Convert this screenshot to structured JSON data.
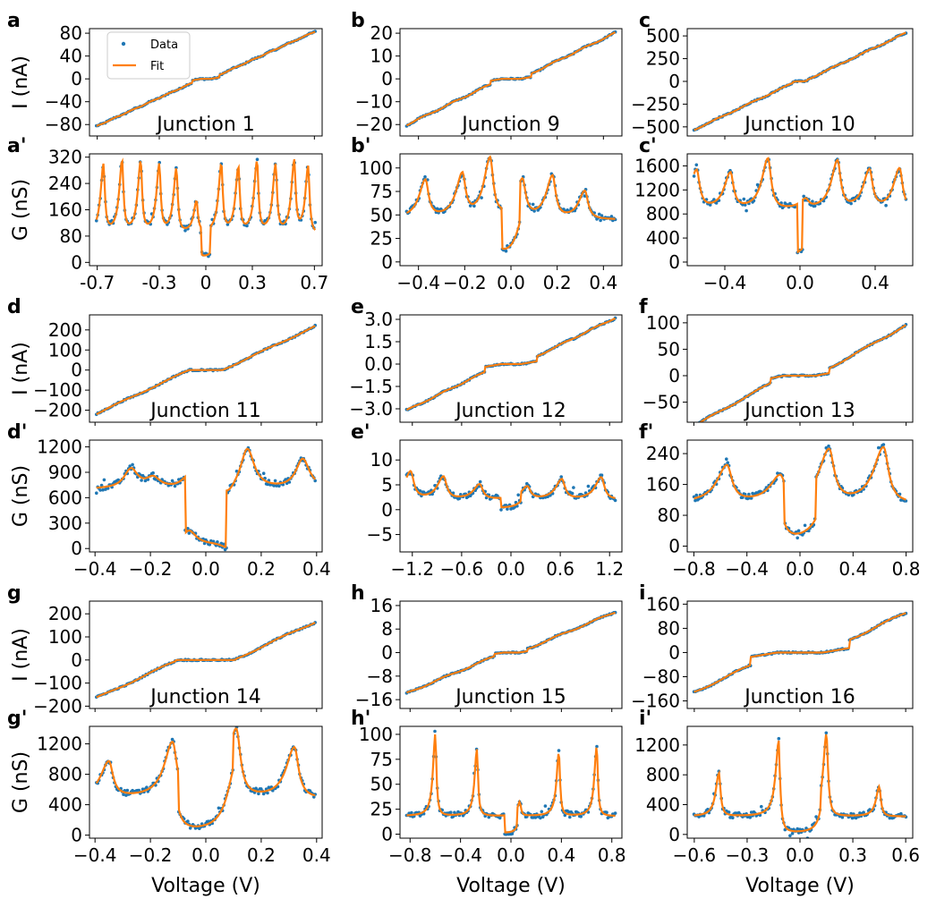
{
  "colors": {
    "data": "#1f77b4",
    "fit": "#ff7f0e",
    "frame": "#000000"
  },
  "legend": {
    "data_label": "Data",
    "fit_label": "Fit",
    "placement": "upper-left of panel a"
  },
  "common": {
    "xlabel": "Voltage (V)",
    "ylabel_current": "I (nA)",
    "ylabel_conductance": "G (nS)"
  },
  "chart_data": [
    {
      "id": "a",
      "type": "scatter",
      "quantity": "current",
      "title": "Junction 1",
      "xlim": [
        -0.75,
        0.75
      ],
      "ylim": [
        -100,
        88
      ],
      "yticks": [
        "80",
        "40",
        "0",
        "−40",
        "−80"
      ],
      "ytick_values": [
        80,
        40,
        0,
        -40,
        -80
      ],
      "xticks": [],
      "xtick_values": [],
      "model": {
        "kind": "iv",
        "slope": 123,
        "staircase": 0.26,
        "gap": 0.03,
        "period": 0.118,
        "phase": 0.059
      }
    },
    {
      "id": "a'",
      "type": "scatter",
      "quantity": "conductance",
      "title": "",
      "xlim": [
        -0.75,
        0.75
      ],
      "ylim": [
        -10,
        330
      ],
      "yticks": [
        "320",
        "240",
        "160",
        "80",
        "0"
      ],
      "ytick_values": [
        320,
        240,
        160,
        80,
        0
      ],
      "xticks": [
        "-0.7",
        "-0.3",
        "0",
        "0.3",
        "0.7"
      ],
      "xtick_values": [
        -0.7,
        -0.3,
        0,
        0.3,
        0.7
      ],
      "model": {
        "kind": "peaks",
        "peaks": [
          -0.66,
          -0.54,
          -0.42,
          -0.3,
          -0.19,
          -0.06,
          0.1,
          0.21,
          0.33,
          0.45,
          0.57,
          0.66
        ],
        "heights": [
          290,
          300,
          300,
          290,
          280,
          180,
          290,
          280,
          300,
          290,
          300,
          290
        ],
        "width": 0.012,
        "base": 85,
        "gap": 0.03,
        "sym": true
      }
    },
    {
      "id": "b",
      "type": "scatter",
      "quantity": "current",
      "title": "Junction 9",
      "xlim": [
        -0.48,
        0.48
      ],
      "ylim": [
        -25,
        22
      ],
      "yticks": [
        "20",
        "10",
        "0",
        "−10",
        "−20"
      ],
      "ytick_values": [
        20,
        10,
        0,
        -10,
        -20
      ],
      "xticks": [],
      "xtick_values": [],
      "model": {
        "kind": "iv",
        "slope": 49,
        "staircase": 0.3,
        "gap": 0.04,
        "period": 0.13,
        "phase": 0.05
      }
    },
    {
      "id": "b'",
      "type": "scatter",
      "quantity": "conductance",
      "title": "",
      "xlim": [
        -0.48,
        0.48
      ],
      "ylim": [
        -4,
        115
      ],
      "yticks": [
        "100",
        "75",
        "50",
        "25",
        "0"
      ],
      "ytick_values": [
        100,
        75,
        50,
        25,
        0
      ],
      "xticks": [
        "−0.4",
        "−0.2",
        "0.0",
        "0.2",
        "0.4"
      ],
      "xtick_values": [
        -0.4,
        -0.2,
        0,
        0.2,
        0.4
      ],
      "model": {
        "kind": "peaks",
        "peaks": [
          -0.37,
          -0.21,
          -0.09,
          0.05,
          0.18,
          0.32
        ],
        "heights": [
          85,
          90,
          108,
          85,
          90,
          75
        ],
        "width": 0.018,
        "base": 45,
        "gap": 0.04,
        "sym": true
      }
    },
    {
      "id": "c",
      "type": "scatter",
      "quantity": "current",
      "title": "Junction 10",
      "xlim": [
        -0.6,
        0.6
      ],
      "ylim": [
        -600,
        580
      ],
      "yticks": [
        "500",
        "250",
        "0",
        "−250",
        "−500"
      ],
      "ytick_values": [
        500,
        250,
        0,
        -250,
        -500
      ],
      "xticks": [],
      "xtick_values": [],
      "model": {
        "kind": "iv",
        "slope": 980,
        "staircase": 0.2,
        "gap": 0.02,
        "period": 0.18,
        "phase": 0.02
      }
    },
    {
      "id": "c'",
      "type": "scatter",
      "quantity": "conductance",
      "title": "",
      "xlim": [
        -0.6,
        0.6
      ],
      "ylim": [
        -60,
        1800
      ],
      "yticks": [
        "1600",
        "1200",
        "800",
        "400",
        "0"
      ],
      "ytick_values": [
        1600,
        1200,
        800,
        400,
        0
      ],
      "xticks": [
        "−0.4",
        "0.0",
        "0.4"
      ],
      "xtick_values": [
        -0.4,
        0,
        0.4
      ],
      "model": {
        "kind": "peaks",
        "peaks": [
          -0.55,
          -0.37,
          -0.17,
          0.03,
          0.2,
          0.37,
          0.53
        ],
        "heights": [
          1500,
          1450,
          1700,
          1000,
          1650,
          1500,
          1550
        ],
        "width": 0.022,
        "base": 850,
        "gap": 0.015,
        "sym": true
      }
    },
    {
      "id": "d",
      "type": "scatter",
      "quantity": "current",
      "title": "Junction 11",
      "xlim": [
        -0.42,
        0.42
      ],
      "ylim": [
        -260,
        275
      ],
      "yticks": [
        "200",
        "100",
        "0",
        "−100",
        "−200"
      ],
      "ytick_values": [
        200,
        100,
        0,
        -100,
        -200
      ],
      "xticks": [],
      "xtick_values": [],
      "model": {
        "kind": "iv",
        "slope": 650,
        "staircase": 0.15,
        "gap": 0.06,
        "period": 0.2,
        "phase": 0
      }
    },
    {
      "id": "d'",
      "type": "scatter",
      "quantity": "conductance",
      "title": "",
      "xlim": [
        -0.42,
        0.42
      ],
      "ylim": [
        -40,
        1280
      ],
      "yticks": [
        "1200",
        "900",
        "600",
        "300",
        "0"
      ],
      "ytick_values": [
        1200,
        900,
        600,
        300,
        0
      ],
      "xticks": [
        "−0.4",
        "−0.2",
        "0.0",
        "0.2",
        "0.4"
      ],
      "xtick_values": [
        -0.4,
        -0.2,
        0,
        0.2,
        0.4
      ],
      "model": {
        "kind": "peaks",
        "peaks": [
          -0.27,
          -0.19,
          -0.06,
          0.08,
          0.15,
          0.35
        ],
        "heights": [
          930,
          820,
          860,
          600,
          1180,
          1050
        ],
        "width": 0.03,
        "base": 700,
        "gap": 0.075,
        "sym": false
      }
    },
    {
      "id": "e",
      "type": "scatter",
      "quantity": "current",
      "title": "Junction 12",
      "xlim": [
        -1.35,
        1.35
      ],
      "ylim": [
        -3.9,
        3.3
      ],
      "yticks": [
        "3.0",
        "1.5",
        "0.0",
        "−1.5",
        "−3.0"
      ],
      "ytick_values": [
        3,
        1.5,
        0,
        -1.5,
        -3
      ],
      "xticks": [],
      "xtick_values": [],
      "model": {
        "kind": "iv",
        "slope": 2.7,
        "staircase": 0.25,
        "gap": 0.12,
        "period": 0.4,
        "phase": 0.2
      }
    },
    {
      "id": "e'",
      "type": "scatter",
      "quantity": "conductance",
      "title": "",
      "xlim": [
        -1.35,
        1.35
      ],
      "ylim": [
        -8.5,
        14
      ],
      "yticks": [
        "10",
        "5",
        "0",
        "−5"
      ],
      "ytick_values": [
        10,
        5,
        0,
        -5
      ],
      "xticks": [
        "−1.2",
        "−0.6",
        "0.0",
        "0.6",
        "1.2"
      ],
      "xtick_values": [
        -1.2,
        -0.6,
        0,
        0.6,
        1.2
      ],
      "model": {
        "kind": "peaks",
        "peaks": [
          -1.22,
          -0.82,
          -0.38,
          0.2,
          0.62,
          1.1
        ],
        "heights": [
          7.5,
          6.5,
          5,
          4.5,
          6,
          6.5
        ],
        "width": 0.05,
        "base": 2,
        "gap": 0.12,
        "sym": true
      }
    },
    {
      "id": "f",
      "type": "scatter",
      "quantity": "current",
      "title": "Junction 13",
      "xlim": [
        -0.85,
        0.85
      ],
      "ylim": [
        -88,
        115
      ],
      "yticks": [
        "100",
        "50",
        "0",
        "−50"
      ],
      "ytick_values": [
        100,
        50,
        0,
        -50
      ],
      "xticks": [],
      "xtick_values": [],
      "model": {
        "kind": "iv",
        "slope": 140,
        "staircase": 0.2,
        "gap": 0.12,
        "period": 0.36,
        "phase": 0.1
      }
    },
    {
      "id": "f'",
      "type": "scatter",
      "quantity": "conductance",
      "title": "",
      "xlim": [
        -0.85,
        0.85
      ],
      "ylim": [
        -15,
        275
      ],
      "yticks": [
        "240",
        "160",
        "80",
        "0"
      ],
      "ytick_values": [
        240,
        160,
        80,
        0
      ],
      "xticks": [
        "−0.8",
        "−0.4",
        "0.0",
        "0.4",
        "0.8"
      ],
      "xtick_values": [
        -0.8,
        -0.4,
        0,
        0.4,
        0.8
      ],
      "model": {
        "kind": "peaks",
        "peaks": [
          -0.55,
          -0.15,
          0.22,
          0.63
        ],
        "heights": [
          205,
          175,
          245,
          255
        ],
        "width": 0.05,
        "base": 110,
        "gap": 0.12,
        "sym": true
      }
    },
    {
      "id": "g",
      "type": "scatter",
      "quantity": "current",
      "title": "Junction 14",
      "xlim": [
        -0.42,
        0.42
      ],
      "ylim": [
        -210,
        255
      ],
      "yticks": [
        "200",
        "100",
        "0",
        "−100",
        "−200"
      ],
      "ytick_values": [
        200,
        100,
        0,
        -100,
        -200
      ],
      "xticks": [],
      "xtick_values": [],
      "model": {
        "kind": "iv",
        "slope": 560,
        "staircase": 0.2,
        "gap": 0.1,
        "period": 0.22,
        "phase": 0.01
      }
    },
    {
      "id": "g'",
      "type": "scatter",
      "quantity": "conductance",
      "title": "",
      "xlim": [
        -0.42,
        0.42
      ],
      "ylim": [
        -40,
        1430
      ],
      "yticks": [
        "1200",
        "800",
        "400",
        "0"
      ],
      "ytick_values": [
        1200,
        800,
        400,
        0
      ],
      "xticks": [
        "−0.4",
        "−0.2",
        "0.0",
        "0.2",
        "0.4"
      ],
      "xtick_values": [
        -0.4,
        -0.2,
        0,
        0.2,
        0.4
      ],
      "model": {
        "kind": "peaks",
        "peaks": [
          -0.35,
          -0.12,
          0.11,
          0.32
        ],
        "heights": [
          950,
          1200,
          1380,
          1150
        ],
        "width": 0.02,
        "base": 480,
        "gap": 0.1,
        "sym": true
      }
    },
    {
      "id": "h",
      "type": "scatter",
      "quantity": "current",
      "title": "Junction 15",
      "xlim": [
        -0.88,
        0.88
      ],
      "ylim": [
        -19,
        17.5
      ],
      "yticks": [
        "16",
        "8",
        "0",
        "−8",
        "−16"
      ],
      "ytick_values": [
        16,
        8,
        0,
        -8,
        -16
      ],
      "xticks": [],
      "xtick_values": [],
      "model": {
        "kind": "iv",
        "slope": 18,
        "staircase": 0.3,
        "gap": 0.06,
        "period": 0.32,
        "phase": 0.07
      }
    },
    {
      "id": "h'",
      "type": "scatter",
      "quantity": "conductance",
      "title": "",
      "xlim": [
        -0.88,
        0.88
      ],
      "ylim": [
        -4,
        108
      ],
      "yticks": [
        "100",
        "75",
        "50",
        "25",
        "0"
      ],
      "ytick_values": [
        100,
        75,
        50,
        25,
        0
      ],
      "xticks": [
        "−0.8",
        "−0.4",
        "0.0",
        "0.4",
        "0.8"
      ],
      "xtick_values": [
        -0.8,
        -0.4,
        0,
        0.4,
        0.8
      ],
      "model": {
        "kind": "peaks",
        "peaks": [
          -0.6,
          -0.27,
          0.07,
          0.38,
          0.68
        ],
        "heights": [
          100,
          85,
          32,
          82,
          88
        ],
        "width": 0.012,
        "base": 18,
        "gap": 0.05,
        "sym": true
      }
    },
    {
      "id": "i",
      "type": "scatter",
      "quantity": "current",
      "title": "Junction 16",
      "xlim": [
        -0.64,
        0.64
      ],
      "ylim": [
        -185,
        170
      ],
      "yticks": [
        "160",
        "80",
        "0",
        "−80",
        "−160"
      ],
      "ytick_values": [
        160,
        80,
        0,
        -80,
        -160
      ],
      "xticks": [],
      "xtick_values": [],
      "model": {
        "kind": "iv",
        "slope": 280,
        "staircase": 0.25,
        "gap": 0.13,
        "period": 0.3,
        "phase": 0.15
      }
    },
    {
      "id": "i'",
      "type": "scatter",
      "quantity": "conductance",
      "title": "",
      "xlim": [
        -0.64,
        0.64
      ],
      "ylim": [
        -50,
        1450
      ],
      "yticks": [
        "1200",
        "800",
        "400",
        "0"
      ],
      "ytick_values": [
        1200,
        800,
        400,
        0
      ],
      "xticks": [
        "−0.6",
        "−0.3",
        "0.0",
        "0.3",
        "0.6"
      ],
      "xtick_values": [
        -0.6,
        -0.3,
        0,
        0.3,
        0.6
      ],
      "model": {
        "kind": "peaks",
        "peaks": [
          -0.46,
          -0.12,
          0.15,
          0.45
        ],
        "heights": [
          820,
          1250,
          1350,
          640
        ],
        "width": 0.012,
        "base": 240,
        "gap": 0.12,
        "sym": true
      }
    }
  ]
}
